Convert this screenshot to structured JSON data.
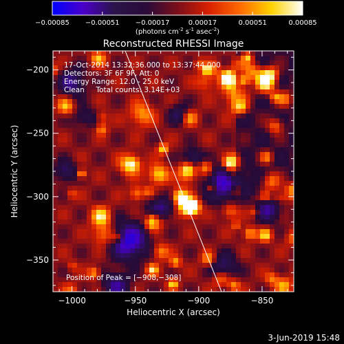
{
  "chart_data": {
    "type": "heatmap",
    "title": "Reconstructed RHESSI Image",
    "colorbar": {
      "ticks": [
        "-0.00085",
        "-0.00051",
        "-0.00017",
        "0.00017",
        "0.00051",
        "0.00085"
      ],
      "range": [
        -0.00085,
        0.00085
      ],
      "unit_base": "(photons cm",
      "unit_exp1": "-2",
      "unit_mid": " s",
      "unit_exp2": "-1",
      "unit_tail": " asec",
      "unit_exp3": "-2",
      "unit_end": ")",
      "colors": [
        "#0000ff",
        "#4b00c8",
        "#2a1448",
        "#2a0b3a",
        "#7a0e1a",
        "#d82000",
        "#ff6a00",
        "#ffd200",
        "#ffffff"
      ]
    },
    "xlabel": "Heliocentric X (arcsec)",
    "ylabel": "Heliocentric Y (arcsec)",
    "xlim": [
      -1015,
      -825
    ],
    "ylim": [
      -375,
      -185
    ],
    "xticks": [
      -1000,
      -950,
      -900,
      -850
    ],
    "yticks": [
      -200,
      -250,
      -300,
      -350
    ],
    "xtick_labels": [
      "−1000",
      "−950",
      "−900",
      "−850"
    ],
    "ytick_labels": [
      "−200",
      "−250",
      "−300",
      "−350"
    ],
    "info_lines": [
      "17-Oct-2014 13:32:36.000 to 13:37:44.000",
      "Detectors: 3F 6F 9F, Att: 0",
      "Energy Range: 12.0 - 25.0 keV",
      "Clean     Total counts: 3.14E+03"
    ],
    "peak_label": "Position of Peak = [−908,−308]",
    "peak": [
      -908,
      -308
    ],
    "limb_line": [
      [
        -958,
        -185
      ],
      [
        -882,
        -375
      ]
    ]
  },
  "footer": {
    "date": "3-Jun-2019 15:48"
  }
}
